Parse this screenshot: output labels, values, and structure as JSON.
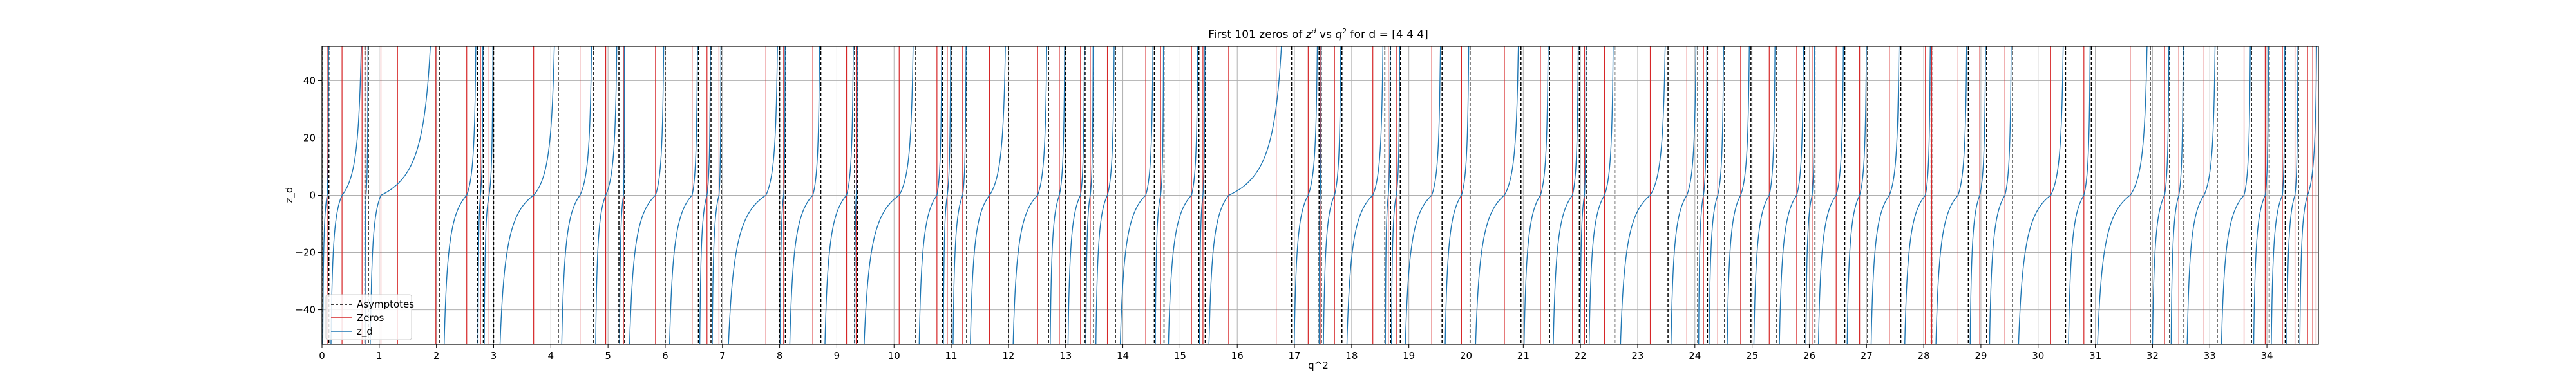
{
  "chart_data": {
    "type": "line",
    "title_prefix": "First 101 zeros of ",
    "title_z": "z",
    "title_sup_d": "d",
    "title_mid": " vs ",
    "title_q": "q",
    "title_sup_2": "2",
    "title_suffix": " for d = [4 4 4]",
    "xlabel": "q^2",
    "ylabel": "z_d",
    "xlim": [
      0,
      34.9
    ],
    "ylim": [
      -52,
      52
    ],
    "xticks": [
      0,
      1,
      2,
      3,
      4,
      5,
      6,
      7,
      8,
      9,
      10,
      11,
      12,
      13,
      14,
      15,
      16,
      17,
      18,
      19,
      20,
      21,
      22,
      23,
      24,
      25,
      26,
      27,
      28,
      29,
      30,
      31,
      32,
      33,
      34
    ],
    "yticks": [
      -40,
      -20,
      0,
      20,
      40
    ],
    "ytick_labels": [
      "−40",
      "−20",
      "0",
      "20",
      "40"
    ],
    "grid": true,
    "legend_position": "lower-left",
    "legend": [
      {
        "label": "Asymptotes",
        "style": "dashed",
        "color": "#000000"
      },
      {
        "label": "Zeros",
        "style": "solid",
        "color": "#d62728"
      },
      {
        "label": "z_d",
        "style": "solid",
        "color": "#1f77b4"
      }
    ],
    "asymptotes": [
      0.0,
      0.12,
      0.75,
      0.81,
      2.06,
      2.72,
      2.82,
      3.0,
      4.13,
      4.75,
      5.19,
      5.29,
      6.0,
      6.58,
      6.8,
      6.98,
      8.0,
      8.1,
      8.72,
      9.31,
      9.36,
      10.38,
      10.85,
      11.0,
      11.27,
      12.0,
      12.7,
      13.0,
      13.34,
      13.49,
      13.87,
      14.55,
      14.72,
      15.33,
      15.44,
      16.95,
      17.43,
      17.47,
      17.83,
      18.58,
      18.68,
      18.85,
      19.58,
      20.07,
      20.96,
      21.46,
      21.98,
      22.1,
      22.6,
      23.53,
      24.05,
      24.22,
      24.52,
      24.98,
      25.42,
      25.92,
      26.1,
      26.62,
      27.02,
      27.6,
      28.13,
      28.14,
      28.78,
      29.1,
      29.55,
      30.48,
      30.93,
      31.96,
      32.3,
      32.55,
      33.13,
      33.73,
      34.04,
      34.32,
      34.55
    ],
    "zeros": [
      0.09,
      0.35,
      0.7,
      0.77,
      1.03,
      1.32,
      1.99,
      2.53,
      2.77,
      2.92,
      3.7,
      4.51,
      4.96,
      5.27,
      5.83,
      6.47,
      6.73,
      6.94,
      7.76,
      8.07,
      8.58,
      9.17,
      9.34,
      10.09,
      10.75,
      10.93,
      11.2,
      11.67,
      12.51,
      12.89,
      13.26,
      13.43,
      13.73,
      14.4,
      14.66,
      15.2,
      15.4,
      15.85,
      16.68,
      17.24,
      17.45,
      17.7,
      18.37,
      18.64,
      18.78,
      19.4,
      19.92,
      20.67,
      21.3,
      21.86,
      22.07,
      22.42,
      23.22,
      23.86,
      24.15,
      24.4,
      24.8,
      25.3,
      25.78,
      26.05,
      26.47,
      26.88,
      27.4,
      28.03,
      28.14,
      28.6,
      28.98,
      29.42,
      30.22,
      30.8,
      31.61,
      32.21,
      32.46,
      32.9,
      33.6,
      33.97,
      34.27,
      34.49,
      34.71,
      34.8,
      34.86
    ]
  }
}
